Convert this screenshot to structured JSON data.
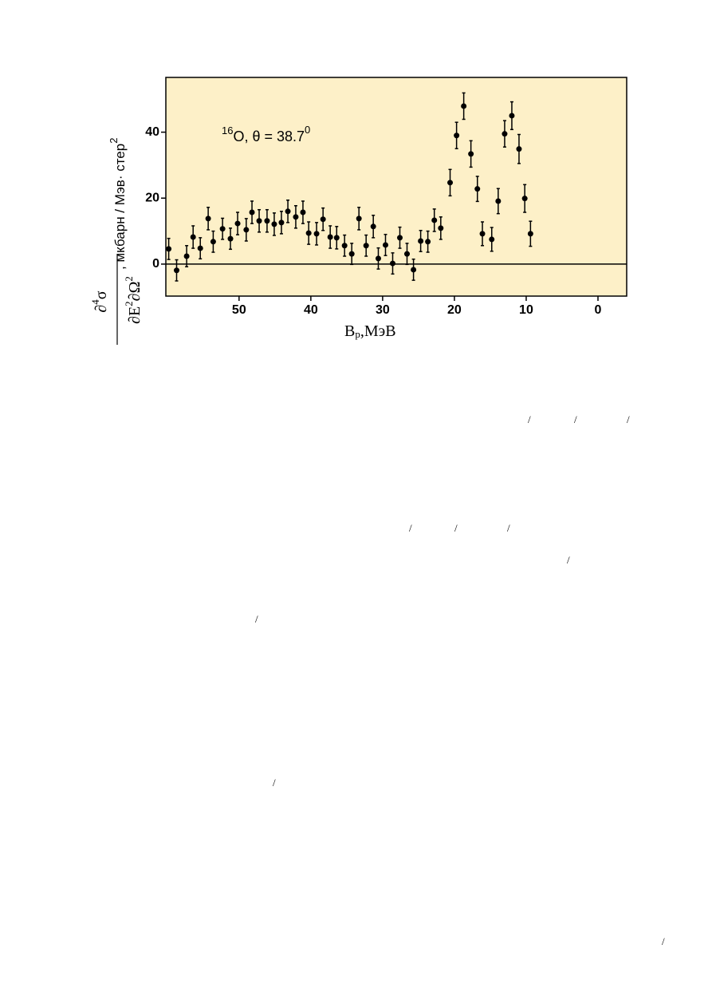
{
  "chart_data": {
    "type": "scatter",
    "annotation": {
      "mass": "16",
      "text": "O,  θ = 38.7",
      "sup": "0"
    },
    "x_label": {
      "main": "B",
      "sub": "p",
      "rest": ",МэВ"
    },
    "y_label": {
      "numerator": "∂",
      "num_sup": "4",
      "num_tail": "σ",
      "denominator": "∂E",
      "den_sup1": "2",
      "den_mid": "∂Ω",
      "den_sup2": "2",
      "units": ", мкбарн / Мэв· стер",
      "units_sup": "2"
    },
    "x": [
      59.8,
      58.7,
      57.3,
      56.4,
      55.4,
      54.3,
      53.6,
      52.3,
      51.2,
      50.2,
      49.0,
      48.2,
      47.2,
      46.1,
      45.1,
      44.1,
      43.2,
      42.1,
      41.1,
      40.3,
      39.2,
      38.3,
      37.3,
      36.4,
      35.3,
      34.3,
      33.3,
      32.3,
      31.3,
      30.6,
      29.6,
      28.6,
      27.6,
      26.6,
      25.7,
      24.7,
      23.7,
      22.8,
      21.9,
      20.6,
      19.7,
      18.7,
      17.7,
      16.8,
      16.1,
      14.8,
      13.9,
      13.0,
      12.0,
      11.0,
      10.2,
      9.4
    ],
    "values": [
      4.6,
      -1.9,
      2.4,
      8.2,
      4.8,
      13.8,
      6.8,
      10.7,
      7.7,
      12.3,
      10.4,
      15.7,
      13.1,
      13.1,
      12.1,
      12.6,
      16.0,
      14.3,
      15.7,
      9.4,
      9.2,
      13.6,
      8.2,
      8.0,
      5.6,
      3.1,
      13.8,
      5.6,
      11.4,
      1.7,
      5.8,
      0.2,
      8.0,
      3.1,
      -1.7,
      7.0,
      6.8,
      13.3,
      10.9,
      24.7,
      39.0,
      47.9,
      33.4,
      22.8,
      9.2,
      7.5,
      19.1,
      39.5,
      45.0,
      34.9,
      19.9,
      9.2
    ],
    "errors": [
      3.2,
      3.2,
      3.2,
      3.4,
      3.2,
      3.4,
      3.2,
      3.2,
      3.2,
      3.4,
      3.4,
      3.4,
      3.4,
      3.4,
      3.4,
      3.4,
      3.4,
      3.4,
      3.4,
      3.4,
      3.4,
      3.4,
      3.4,
      3.4,
      3.2,
      3.2,
      3.4,
      3.2,
      3.4,
      3.2,
      3.2,
      3.2,
      3.2,
      3.2,
      3.2,
      3.2,
      3.2,
      3.4,
      3.4,
      4.0,
      4.0,
      4.0,
      4.0,
      3.8,
      3.6,
      3.6,
      3.8,
      4.0,
      4.2,
      4.4,
      4.2,
      3.8
    ],
    "color": "#000000",
    "plot_background": "#fdf0c8",
    "xlim": [
      60.2,
      -4
    ],
    "xticks": [
      50,
      40,
      30,
      20,
      10,
      0
    ],
    "ylim": [
      -9.7,
      56.6
    ],
    "yticks": [
      0,
      20,
      40
    ],
    "zero_line": true
  },
  "stray_marks": [
    "/",
    "/",
    "/",
    "/",
    "/",
    "/",
    "/",
    "/",
    "/",
    "/"
  ]
}
